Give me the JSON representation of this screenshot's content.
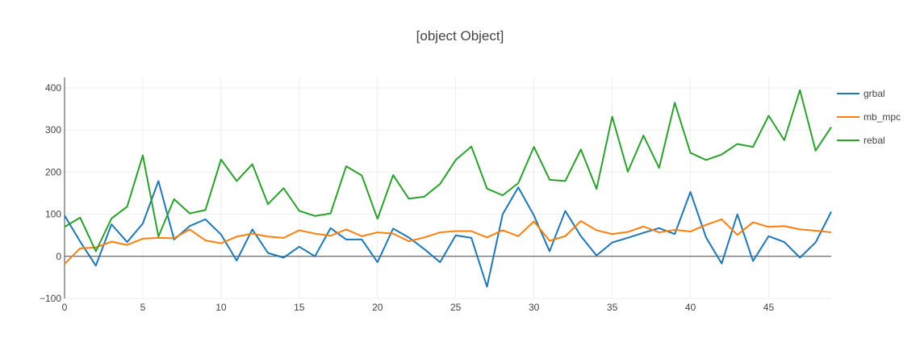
{
  "chart_data": {
    "type": "line",
    "title": "[object Object]",
    "xlabel": "",
    "ylabel": "",
    "xlim": [
      0,
      49
    ],
    "ylim": [
      -100,
      425
    ],
    "x_ticks": [
      0,
      5,
      10,
      15,
      20,
      25,
      30,
      35,
      40,
      45
    ],
    "y_ticks": [
      -100,
      0,
      100,
      200,
      300,
      400
    ],
    "x_tick_labels": [
      "0",
      "5",
      "10",
      "15",
      "20",
      "25",
      "30",
      "35",
      "40",
      "45"
    ],
    "y_tick_labels": [
      "−100",
      "0",
      "100",
      "200",
      "300",
      "400"
    ],
    "grid": true,
    "legend_position": "top-right",
    "series": [
      {
        "name": "grbal",
        "color": "#1f77b4",
        "values": [
          97,
          35,
          -22,
          76,
          34,
          78,
          179,
          40,
          72,
          88,
          52,
          -10,
          64,
          8,
          -3,
          23,
          0,
          67,
          40,
          40,
          -14,
          66,
          45,
          17,
          -14,
          50,
          44,
          -72,
          100,
          164,
          97,
          12,
          108,
          48,
          2,
          33,
          44,
          56,
          67,
          53,
          153,
          45,
          -17,
          100,
          -11,
          48,
          34,
          -3,
          33,
          106
        ]
      },
      {
        "name": "mb_mpc",
        "color": "#ff7f0e",
        "values": [
          -18,
          19,
          21,
          35,
          27,
          42,
          44,
          43,
          64,
          38,
          31,
          47,
          54,
          47,
          44,
          62,
          54,
          49,
          64,
          48,
          57,
          54,
          36,
          45,
          57,
          60,
          60,
          45,
          62,
          48,
          83,
          37,
          48,
          84,
          62,
          53,
          58,
          71,
          57,
          63,
          59,
          75,
          88,
          51,
          81,
          70,
          72,
          64,
          61,
          57
        ]
      },
      {
        "name": "rebal",
        "color": "#2ca02c",
        "values": [
          70,
          92,
          12,
          90,
          118,
          240,
          47,
          136,
          102,
          110,
          230,
          179,
          219,
          124,
          162,
          108,
          96,
          102,
          214,
          192,
          89,
          193,
          137,
          142,
          172,
          229,
          261,
          161,
          145,
          174,
          260,
          182,
          179,
          254,
          160,
          332,
          201,
          287,
          210,
          365,
          246,
          229,
          242,
          267,
          260,
          334,
          276,
          395,
          251,
          307
        ]
      }
    ]
  }
}
